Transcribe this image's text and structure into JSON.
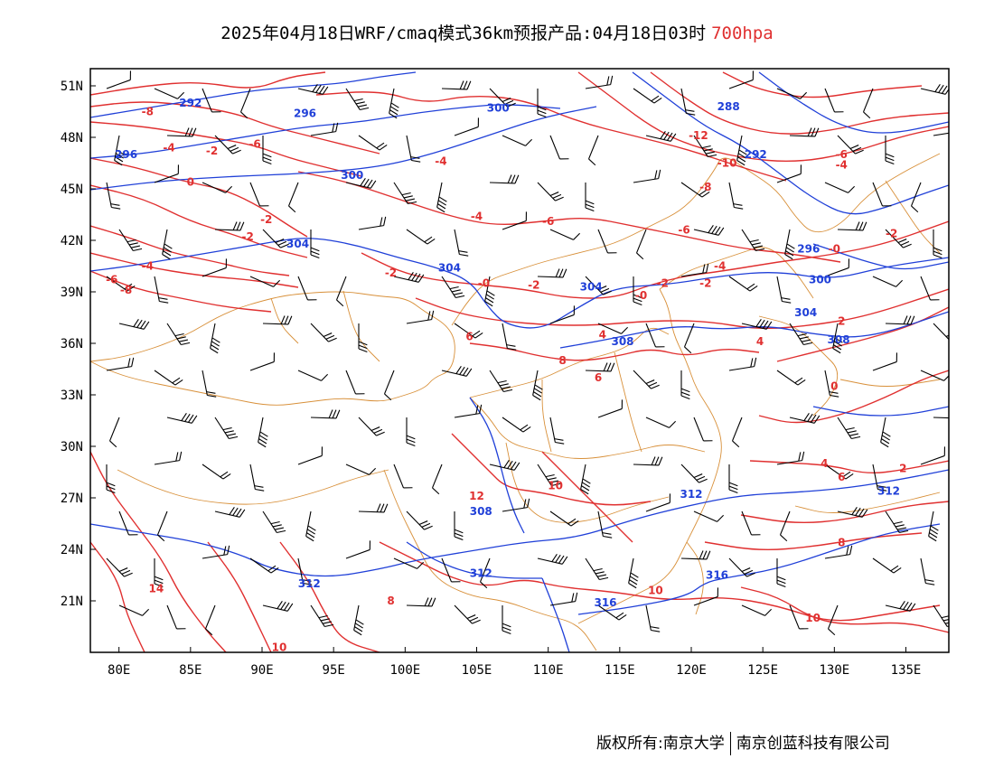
{
  "title": {
    "main": "2025年04月18日WRF/cmaq模式36km预报产品:04月18日03时",
    "level": "700hpa",
    "level_color": "#e03030"
  },
  "colors": {
    "temperature_contour": "#e03030",
    "height_contour": "#2040d8",
    "boundary": "#d8903a",
    "wind_barb": "#000000"
  },
  "axes": {
    "x_ticks": [
      "80E",
      "85E",
      "90E",
      "95E",
      "100E",
      "105E",
      "110E",
      "115E",
      "120E",
      "125E",
      "130E",
      "135E"
    ],
    "x_values": [
      80,
      85,
      90,
      95,
      100,
      105,
      110,
      115,
      120,
      125,
      130,
      135
    ],
    "y_ticks": [
      "51N",
      "48N",
      "45N",
      "42N",
      "39N",
      "36N",
      "33N",
      "30N",
      "27N",
      "24N",
      "21N"
    ],
    "y_values": [
      51,
      48,
      45,
      42,
      39,
      36,
      33,
      30,
      27,
      24,
      21
    ],
    "lon_range": [
      78,
      138
    ],
    "lat_range": [
      18,
      52
    ]
  },
  "temperature_labels": [
    {
      "text": "-8",
      "lon": 82.0,
      "lat": 49.5
    },
    {
      "text": "-4",
      "lon": 83.5,
      "lat": 47.4
    },
    {
      "text": "-2",
      "lon": 86.5,
      "lat": 47.2
    },
    {
      "text": "-6",
      "lon": 89.5,
      "lat": 47.6
    },
    {
      "text": "0",
      "lon": 85.0,
      "lat": 45.4
    },
    {
      "text": "-2",
      "lon": 90.3,
      "lat": 43.2
    },
    {
      "text": "-2",
      "lon": 89.0,
      "lat": 42.2
    },
    {
      "text": "-4",
      "lon": 82.0,
      "lat": 40.5
    },
    {
      "text": "-6",
      "lon": 79.5,
      "lat": 39.7
    },
    {
      "text": "-8",
      "lon": 80.5,
      "lat": 39.1
    },
    {
      "text": "-4",
      "lon": 102.5,
      "lat": 46.6
    },
    {
      "text": "-4",
      "lon": 105.0,
      "lat": 43.4
    },
    {
      "text": "-6",
      "lon": 110.0,
      "lat": 43.1
    },
    {
      "text": "-2",
      "lon": 99.0,
      "lat": 40.1
    },
    {
      "text": "-0",
      "lon": 105.5,
      "lat": 39.5
    },
    {
      "text": "-2",
      "lon": 109.0,
      "lat": 39.4
    },
    {
      "text": "-0",
      "lon": 116.5,
      "lat": 38.8
    },
    {
      "text": "-2",
      "lon": 118.0,
      "lat": 39.5
    },
    {
      "text": "6",
      "lon": 104.5,
      "lat": 36.4
    },
    {
      "text": "4",
      "lon": 113.8,
      "lat": 36.5
    },
    {
      "text": "8",
      "lon": 111.0,
      "lat": 35.0
    },
    {
      "text": "6",
      "lon": 113.5,
      "lat": 34.0
    },
    {
      "text": "-12",
      "lon": 120.5,
      "lat": 48.1
    },
    {
      "text": "-10",
      "lon": 122.5,
      "lat": 46.5
    },
    {
      "text": "-8",
      "lon": 121.0,
      "lat": 45.1
    },
    {
      "text": "-6",
      "lon": 119.5,
      "lat": 42.6
    },
    {
      "text": "-4",
      "lon": 122.0,
      "lat": 40.5
    },
    {
      "text": "-2",
      "lon": 121.0,
      "lat": 39.5
    },
    {
      "text": "-6",
      "lon": 130.5,
      "lat": 47.0
    },
    {
      "text": "-4",
      "lon": 130.5,
      "lat": 46.4
    },
    {
      "text": "-0",
      "lon": 130.0,
      "lat": 41.5
    },
    {
      "text": "-2",
      "lon": 134.0,
      "lat": 42.4
    },
    {
      "text": "4",
      "lon": 124.8,
      "lat": 36.1
    },
    {
      "text": "2",
      "lon": 130.5,
      "lat": 37.3
    },
    {
      "text": "0",
      "lon": 130.0,
      "lat": 33.5
    },
    {
      "text": "4",
      "lon": 129.3,
      "lat": 29.0
    },
    {
      "text": "6",
      "lon": 130.5,
      "lat": 28.2
    },
    {
      "text": "2",
      "lon": 134.8,
      "lat": 28.7
    },
    {
      "text": "12",
      "lon": 105.0,
      "lat": 27.1
    },
    {
      "text": "10",
      "lon": 110.5,
      "lat": 27.7
    },
    {
      "text": "8",
      "lon": 130.5,
      "lat": 24.4
    },
    {
      "text": "10",
      "lon": 117.5,
      "lat": 21.6
    },
    {
      "text": "10",
      "lon": 128.5,
      "lat": 20.0
    },
    {
      "text": "14",
      "lon": 82.6,
      "lat": 21.7
    },
    {
      "text": "10",
      "lon": 91.2,
      "lat": 18.3
    },
    {
      "text": "8",
      "lon": 99.0,
      "lat": 21.0
    }
  ],
  "height_labels": [
    {
      "text": "292",
      "lon": 85.0,
      "lat": 50.0
    },
    {
      "text": "296",
      "lon": 93.0,
      "lat": 49.4
    },
    {
      "text": "300",
      "lon": 106.5,
      "lat": 49.7
    },
    {
      "text": "296",
      "lon": 80.5,
      "lat": 47.0
    },
    {
      "text": "300",
      "lon": 96.3,
      "lat": 45.8
    },
    {
      "text": "304",
      "lon": 92.5,
      "lat": 41.8
    },
    {
      "text": "304",
      "lon": 103.1,
      "lat": 40.4
    },
    {
      "text": "304",
      "lon": 113.0,
      "lat": 39.3
    },
    {
      "text": "288",
      "lon": 122.6,
      "lat": 49.8
    },
    {
      "text": "292",
      "lon": 124.5,
      "lat": 47.0
    },
    {
      "text": "296",
      "lon": 128.2,
      "lat": 41.5
    },
    {
      "text": "300",
      "lon": 129.0,
      "lat": 39.7
    },
    {
      "text": "304",
      "lon": 128.0,
      "lat": 37.8
    },
    {
      "text": "308",
      "lon": 115.2,
      "lat": 36.1
    },
    {
      "text": "308",
      "lon": 130.3,
      "lat": 36.2
    },
    {
      "text": "312",
      "lon": 120.0,
      "lat": 27.2
    },
    {
      "text": "312",
      "lon": 133.8,
      "lat": 27.4
    },
    {
      "text": "308",
      "lon": 105.3,
      "lat": 26.2
    },
    {
      "text": "312",
      "lon": 105.3,
      "lat": 22.6
    },
    {
      "text": "312",
      "lon": 93.3,
      "lat": 22.0
    },
    {
      "text": "316",
      "lon": 114.0,
      "lat": 20.9
    },
    {
      "text": "316",
      "lon": 121.8,
      "lat": 22.5
    }
  ],
  "copyright": {
    "left": "版权所有:南京大学",
    "right": "南京创蓝科技有限公司"
  }
}
